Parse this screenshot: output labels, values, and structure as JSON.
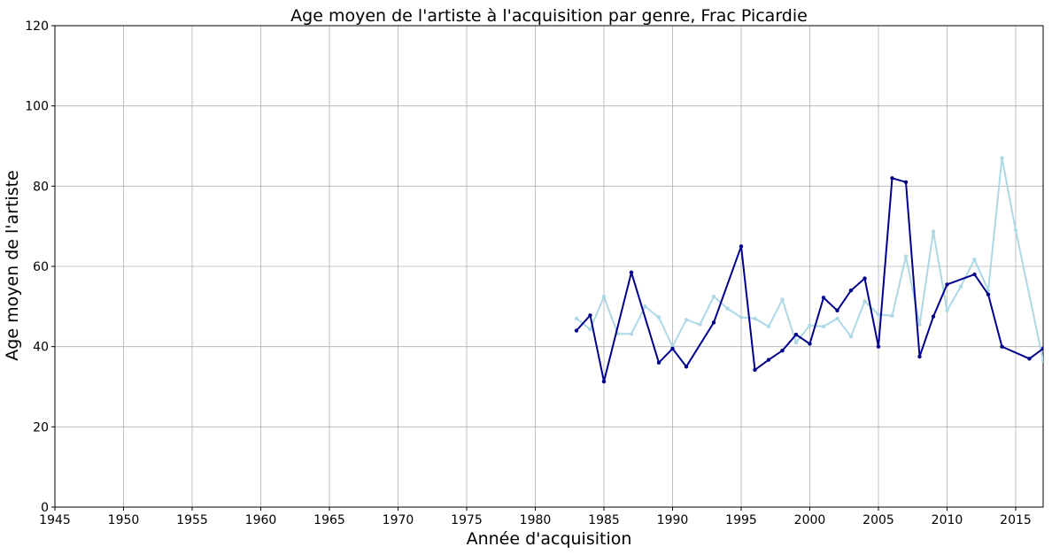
{
  "chart_data": {
    "type": "line",
    "title": "Age moyen de l'artiste à l'acquisition par genre, Frac Picardie",
    "xlabel": "Année d'acquisition",
    "ylabel": "Age moyen de l'artiste",
    "xlim": [
      1945,
      2017
    ],
    "ylim": [
      0,
      120
    ],
    "xticks": [
      1945,
      1950,
      1955,
      1960,
      1965,
      1970,
      1975,
      1980,
      1985,
      1990,
      1995,
      2000,
      2005,
      2010,
      2015
    ],
    "yticks": [
      0,
      20,
      40,
      60,
      80,
      100,
      120
    ],
    "grid": true,
    "series": [
      {
        "color": "#00008b",
        "x": [
          1983,
          1984,
          1985,
          1987,
          1989,
          1990,
          1991,
          1993,
          1995,
          1996,
          1997,
          1998,
          1999,
          2000,
          2001,
          2002,
          2003,
          2004,
          2005,
          2006,
          2007,
          2008,
          2009,
          2010,
          2012,
          2013,
          2014,
          2016,
          2017
        ],
        "y": [
          44,
          47.8,
          31.3,
          58.5,
          36,
          39.5,
          35,
          46,
          65,
          34.2,
          36.7,
          39,
          43,
          40.7,
          52.2,
          49,
          54,
          57,
          40,
          82,
          81,
          37.5,
          47.5,
          55.5,
          58,
          53,
          40,
          37,
          39.5
        ]
      },
      {
        "color": "#add8e6",
        "x": [
          1983,
          1984,
          1985,
          1986,
          1987,
          1988,
          1989,
          1990,
          1991,
          1992,
          1993,
          1994,
          1995,
          1996,
          1997,
          1998,
          1999,
          2000,
          2001,
          2002,
          2003,
          2004,
          2005,
          2006,
          2007,
          2008,
          2009,
          2010,
          2011,
          2012,
          2013,
          2014,
          2015,
          2017
        ],
        "y": [
          47,
          44.3,
          52.5,
          43.2,
          43.2,
          50,
          47.3,
          40,
          46.7,
          45.5,
          52.5,
          49.5,
          47.3,
          47,
          45,
          51.7,
          41,
          45.3,
          45,
          47,
          42.5,
          51.3,
          48,
          47.7,
          62.5,
          45.5,
          68.7,
          49,
          55,
          61.7,
          54,
          87,
          69,
          36.5
        ]
      }
    ]
  }
}
